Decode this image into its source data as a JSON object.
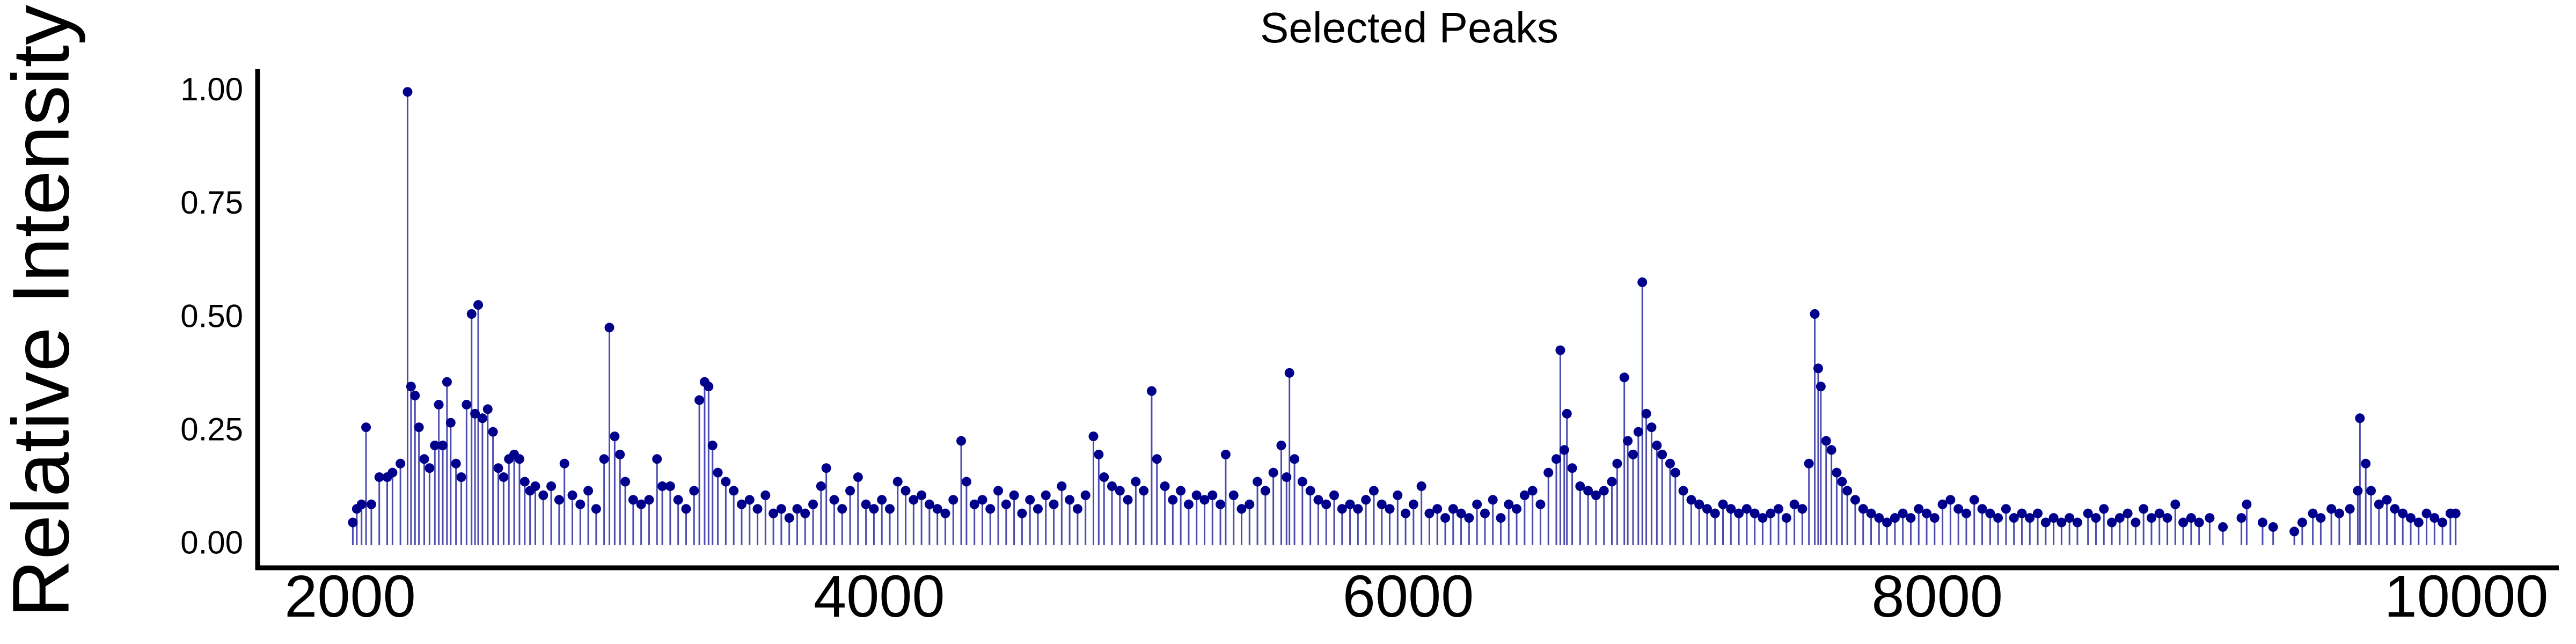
{
  "chart_data": {
    "type": "lollipop",
    "title": "Selected Peaks",
    "y_label": "Relative Intensity",
    "stem_color": "#4b4bb0",
    "color": "#00008b",
    "xlim": [
      1650,
      10350
    ],
    "xticks": [
      2000,
      4000,
      6000,
      8000,
      10000
    ],
    "ylim": [
      -0.05,
      1.05
    ],
    "yticks": [
      {
        "value": 0,
        "label": "0.00"
      },
      {
        "value": 0.25,
        "label": "0.25"
      },
      {
        "value": 0.5,
        "label": "0.50"
      },
      {
        "value": 0.75,
        "label": "0.75"
      },
      {
        "value": 1,
        "label": "1.00"
      }
    ],
    "x": [
      2010,
      2025,
      2043,
      2060,
      2080,
      2110,
      2140,
      2160,
      2190,
      2217,
      2230,
      2245,
      2260,
      2280,
      2300,
      2320,
      2335,
      2350,
      2366,
      2380,
      2400,
      2420,
      2440,
      2459,
      2472,
      2484,
      2500,
      2520,
      2540,
      2560,
      2580,
      2600,
      2620,
      2640,
      2660,
      2680,
      2700,
      2730,
      2760,
      2790,
      2810,
      2840,
      2870,
      2900,
      2930,
      2960,
      2980,
      3000,
      3020,
      3040,
      3070,
      3100,
      3130,
      3160,
      3180,
      3210,
      3240,
      3270,
      3300,
      3320,
      3340,
      3355,
      3370,
      3390,
      3420,
      3450,
      3480,
      3510,
      3540,
      3570,
      3600,
      3630,
      3660,
      3690,
      3720,
      3750,
      3780,
      3800,
      3830,
      3860,
      3890,
      3920,
      3950,
      3980,
      4010,
      4040,
      4070,
      4100,
      4130,
      4160,
      4190,
      4220,
      4250,
      4280,
      4310,
      4330,
      4360,
      4390,
      4420,
      4450,
      4480,
      4510,
      4540,
      4570,
      4600,
      4630,
      4660,
      4690,
      4720,
      4750,
      4780,
      4810,
      4830,
      4850,
      4880,
      4910,
      4940,
      4970,
      5000,
      5030,
      5050,
      5080,
      5110,
      5140,
      5170,
      5200,
      5230,
      5260,
      5290,
      5310,
      5340,
      5370,
      5400,
      5430,
      5460,
      5490,
      5520,
      5540,
      5551,
      5570,
      5600,
      5630,
      5660,
      5690,
      5720,
      5750,
      5780,
      5810,
      5840,
      5870,
      5900,
      5930,
      5960,
      5990,
      6020,
      6050,
      6080,
      6110,
      6140,
      6170,
      6200,
      6230,
      6260,
      6290,
      6320,
      6350,
      6380,
      6410,
      6440,
      6470,
      6500,
      6530,
      6560,
      6575,
      6590,
      6600,
      6620,
      6650,
      6680,
      6710,
      6740,
      6770,
      6790,
      6817,
      6830,
      6850,
      6870,
      6885,
      6900,
      6920,
      6940,
      6960,
      6990,
      7010,
      7040,
      7070,
      7100,
      7130,
      7160,
      7190,
      7220,
      7250,
      7280,
      7310,
      7340,
      7370,
      7400,
      7430,
      7460,
      7490,
      7515,
      7537,
      7550,
      7560,
      7580,
      7600,
      7620,
      7640,
      7660,
      7690,
      7720,
      7750,
      7780,
      7810,
      7840,
      7870,
      7900,
      7930,
      7960,
      7990,
      8020,
      8050,
      8080,
      8110,
      8140,
      8170,
      8200,
      8230,
      8260,
      8290,
      8320,
      8350,
      8380,
      8410,
      8440,
      8470,
      8500,
      8530,
      8570,
      8600,
      8630,
      8660,
      8690,
      8720,
      8750,
      8780,
      8810,
      8840,
      8870,
      8900,
      8930,
      8960,
      8990,
      9030,
      9080,
      9150,
      9170,
      9230,
      9270,
      9350,
      9380,
      9420,
      9450,
      9490,
      9520,
      9560,
      9590,
      9598,
      9620,
      9640,
      9670,
      9700,
      9730,
      9760,
      9790,
      9820,
      9850,
      9880,
      9910,
      9940,
      9960
    ],
    "values": [
      0.05,
      0.08,
      0.09,
      0.26,
      0.09,
      0.15,
      0.15,
      0.16,
      0.18,
      1.0,
      0.35,
      0.33,
      0.26,
      0.19,
      0.17,
      0.22,
      0.31,
      0.22,
      0.36,
      0.27,
      0.18,
      0.15,
      0.31,
      0.51,
      0.29,
      0.53,
      0.28,
      0.3,
      0.25,
      0.17,
      0.15,
      0.19,
      0.2,
      0.19,
      0.14,
      0.12,
      0.13,
      0.11,
      0.13,
      0.1,
      0.18,
      0.11,
      0.09,
      0.12,
      0.08,
      0.19,
      0.48,
      0.24,
      0.2,
      0.14,
      0.1,
      0.09,
      0.1,
      0.19,
      0.13,
      0.13,
      0.1,
      0.08,
      0.12,
      0.32,
      0.36,
      0.35,
      0.22,
      0.16,
      0.14,
      0.12,
      0.09,
      0.1,
      0.08,
      0.11,
      0.07,
      0.08,
      0.06,
      0.08,
      0.07,
      0.09,
      0.13,
      0.17,
      0.1,
      0.08,
      0.12,
      0.15,
      0.09,
      0.08,
      0.1,
      0.08,
      0.14,
      0.12,
      0.1,
      0.11,
      0.09,
      0.08,
      0.07,
      0.1,
      0.23,
      0.14,
      0.09,
      0.1,
      0.08,
      0.12,
      0.09,
      0.11,
      0.07,
      0.1,
      0.08,
      0.11,
      0.09,
      0.13,
      0.1,
      0.08,
      0.11,
      0.24,
      0.2,
      0.15,
      0.13,
      0.12,
      0.1,
      0.14,
      0.12,
      0.34,
      0.19,
      0.13,
      0.1,
      0.12,
      0.09,
      0.11,
      0.1,
      0.11,
      0.09,
      0.2,
      0.11,
      0.08,
      0.09,
      0.14,
      0.12,
      0.16,
      0.22,
      0.15,
      0.38,
      0.19,
      0.14,
      0.12,
      0.1,
      0.09,
      0.11,
      0.08,
      0.09,
      0.08,
      0.1,
      0.12,
      0.09,
      0.08,
      0.11,
      0.07,
      0.09,
      0.13,
      0.07,
      0.08,
      0.06,
      0.08,
      0.07,
      0.06,
      0.09,
      0.07,
      0.1,
      0.06,
      0.09,
      0.08,
      0.11,
      0.12,
      0.09,
      0.16,
      0.19,
      0.43,
      0.21,
      0.29,
      0.17,
      0.13,
      0.12,
      0.11,
      0.12,
      0.14,
      0.18,
      0.37,
      0.23,
      0.2,
      0.25,
      0.58,
      0.29,
      0.26,
      0.22,
      0.2,
      0.18,
      0.16,
      0.12,
      0.1,
      0.09,
      0.08,
      0.07,
      0.09,
      0.08,
      0.07,
      0.08,
      0.07,
      0.06,
      0.07,
      0.08,
      0.06,
      0.09,
      0.08,
      0.18,
      0.51,
      0.39,
      0.35,
      0.23,
      0.21,
      0.16,
      0.14,
      0.12,
      0.1,
      0.08,
      0.07,
      0.06,
      0.05,
      0.06,
      0.07,
      0.06,
      0.08,
      0.07,
      0.06,
      0.09,
      0.1,
      0.08,
      0.07,
      0.1,
      0.08,
      0.07,
      0.06,
      0.08,
      0.06,
      0.07,
      0.06,
      0.07,
      0.05,
      0.06,
      0.05,
      0.06,
      0.05,
      0.07,
      0.06,
      0.08,
      0.05,
      0.06,
      0.07,
      0.05,
      0.08,
      0.06,
      0.07,
      0.06,
      0.09,
      0.05,
      0.06,
      0.05,
      0.06,
      0.04,
      0.06,
      0.09,
      0.05,
      0.04,
      0.03,
      0.05,
      0.07,
      0.06,
      0.08,
      0.07,
      0.08,
      0.12,
      0.28,
      0.18,
      0.12,
      0.09,
      0.1,
      0.08,
      0.07,
      0.06,
      0.05,
      0.07,
      0.06,
      0.05,
      0.07,
      0.07
    ]
  }
}
